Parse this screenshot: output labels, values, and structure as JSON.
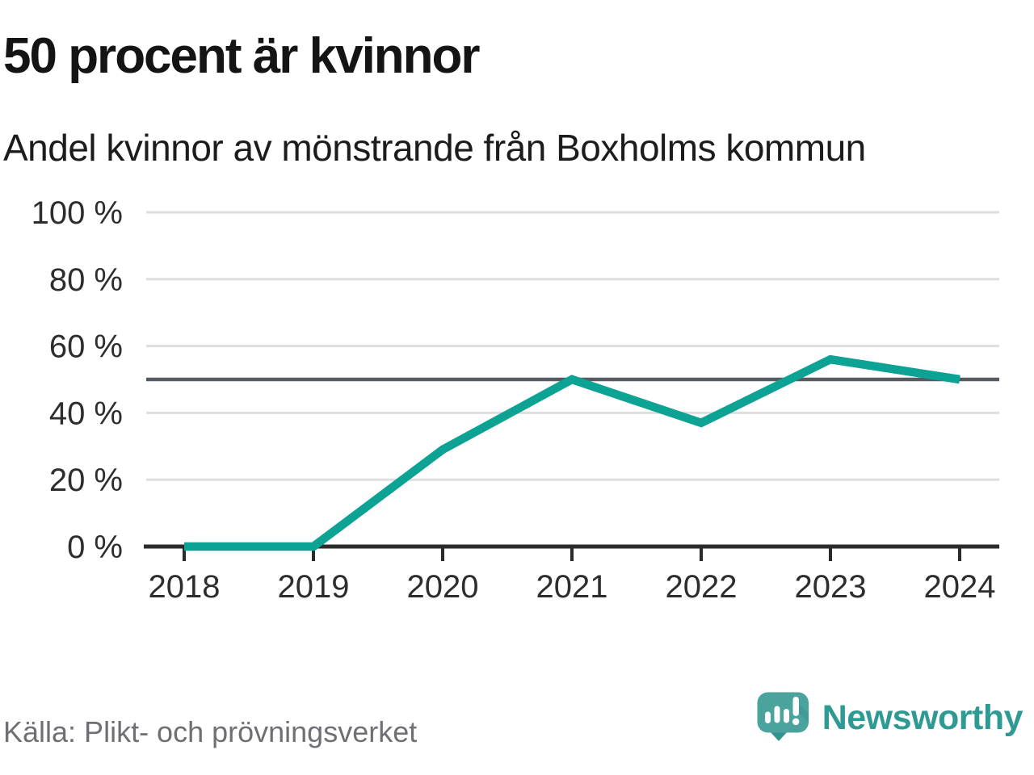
{
  "chart_data": {
    "type": "line",
    "title": "50 procent är kvinnor",
    "subtitle": "Andel kvinnor av mönstrande från Boxholms kommun",
    "categories": [
      "2018",
      "2019",
      "2020",
      "2021",
      "2022",
      "2023",
      "2024"
    ],
    "series": [
      {
        "name": "Andel kvinnor",
        "values": [
          0,
          0,
          29,
          50,
          37,
          56,
          50
        ]
      }
    ],
    "ylim": [
      0,
      100
    ],
    "yticks": [
      0,
      20,
      40,
      60,
      80,
      100
    ],
    "ytick_suffix": " %",
    "reference_line": 50,
    "grid": true,
    "legend": "none",
    "markers": "none"
  },
  "footer": {
    "source": "Källa: Plikt- och prövningsverket",
    "brand": "Newsworthy"
  },
  "icons": {
    "logo": "newsworthy-speech-bubble-bar-chart"
  },
  "colors": {
    "line": "#0CA294",
    "grid": "#DEDEDE",
    "reference": "#565B63",
    "axis": "#2B2B2B",
    "tick_label": "#2D2D2D",
    "title": "#141414",
    "subtitle": "#1C1C1C",
    "source": "#6F6F75",
    "brand_text": "#2F9A93",
    "logo_bubble": "#4AA39D",
    "logo_bubble_shade": "#33948D"
  }
}
